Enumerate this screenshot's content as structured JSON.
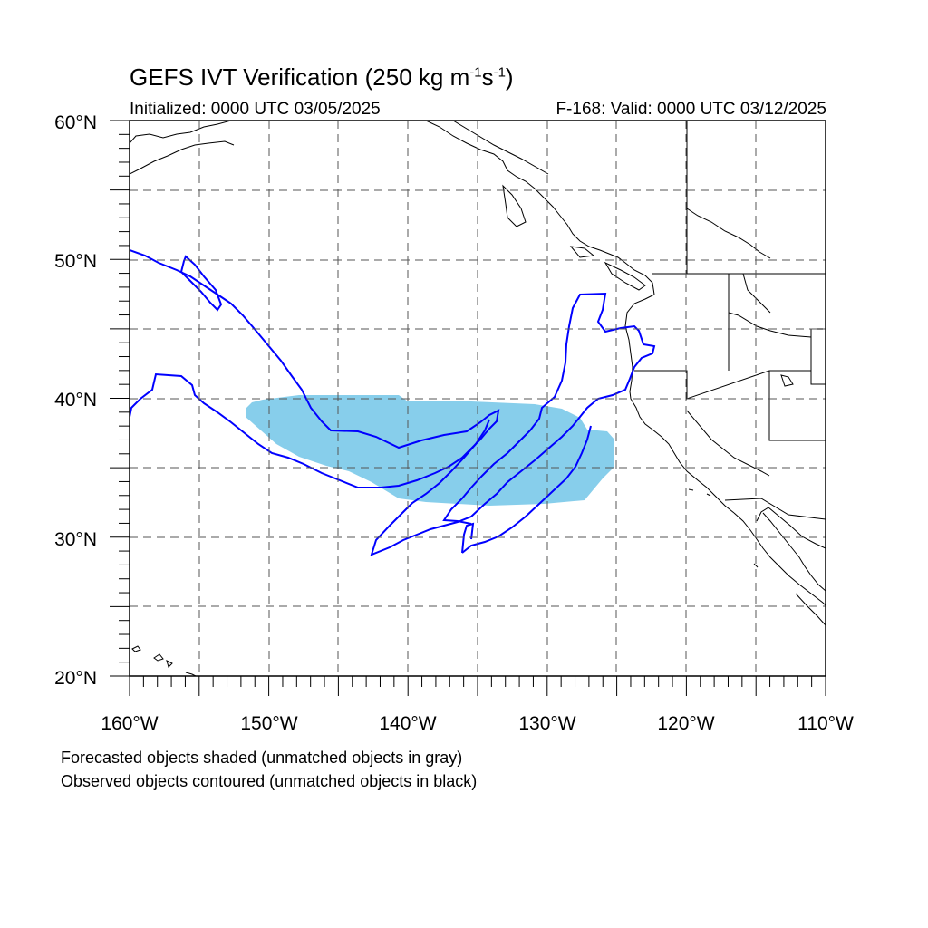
{
  "header": {
    "title_main": "GEFS IVT Verification (250 kg m",
    "title_sup1": "-1",
    "title_mid": "s",
    "title_sup2": "-1",
    "title_end": ")",
    "initialized": "Initialized: 0000 UTC 03/05/2025",
    "valid": "F-168: Valid: 0000 UTC 03/12/2025"
  },
  "map": {
    "lon_range": [
      -160,
      -110
    ],
    "lat_range": [
      20,
      60
    ],
    "lat_labels": [
      "20°N",
      "30°N",
      "40°N",
      "50°N",
      "60°N"
    ],
    "lon_labels": [
      "160°W",
      "150°W",
      "140°W",
      "130°W",
      "120°W",
      "110°W"
    ],
    "grid_spacing_deg": 5,
    "forecast_fill_color": "#87ceeb",
    "observed_contour_color": "#0000ff"
  },
  "legend": {
    "line1": "Forecasted objects shaded (unmatched objects in gray)",
    "line2": "Observed objects contoured (unmatched objects in black)"
  }
}
